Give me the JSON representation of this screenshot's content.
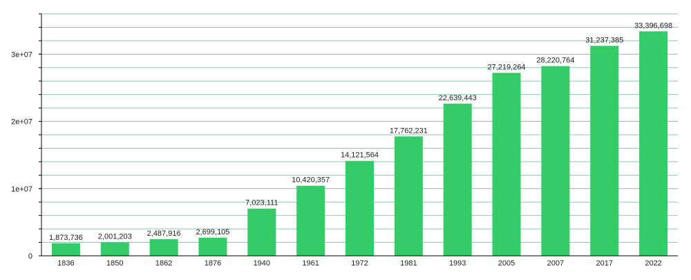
{
  "chart_data": {
    "type": "bar",
    "title": "",
    "xlabel": "",
    "ylabel": "",
    "categories": [
      "1836",
      "1850",
      "1862",
      "1876",
      "1940",
      "1961",
      "1972",
      "1981",
      "1993",
      "2005",
      "2007",
      "2017",
      "2022"
    ],
    "values": [
      1873736,
      2001203,
      2487916,
      2699105,
      7023111,
      10420357,
      14121564,
      17762231,
      22639443,
      27219264,
      28220764,
      31237385,
      33396698
    ],
    "data_labels": [
      "1,873,736",
      "2,001,203",
      "2,487,916",
      "2,699,105",
      "7,023,111",
      "10,420,357",
      "14,121,564",
      "17,762,231",
      "22,639,443",
      "27,219,264",
      "28,220,764",
      "31,237,385",
      "33,396,698"
    ],
    "ylim": [
      0,
      36000000
    ],
    "y_ticks": [
      0,
      10000000,
      20000000,
      30000000
    ],
    "y_tick_labels": [
      "0",
      "1e+07",
      "2e+07",
      "3e+07"
    ],
    "minor_tick_step": 2000000,
    "grid": true,
    "legend": "none",
    "colors": {
      "bar": "#33cc66",
      "major_grid": "#aaaaaa",
      "minor_grid": "#88c8bb",
      "axis": "#000000"
    }
  }
}
